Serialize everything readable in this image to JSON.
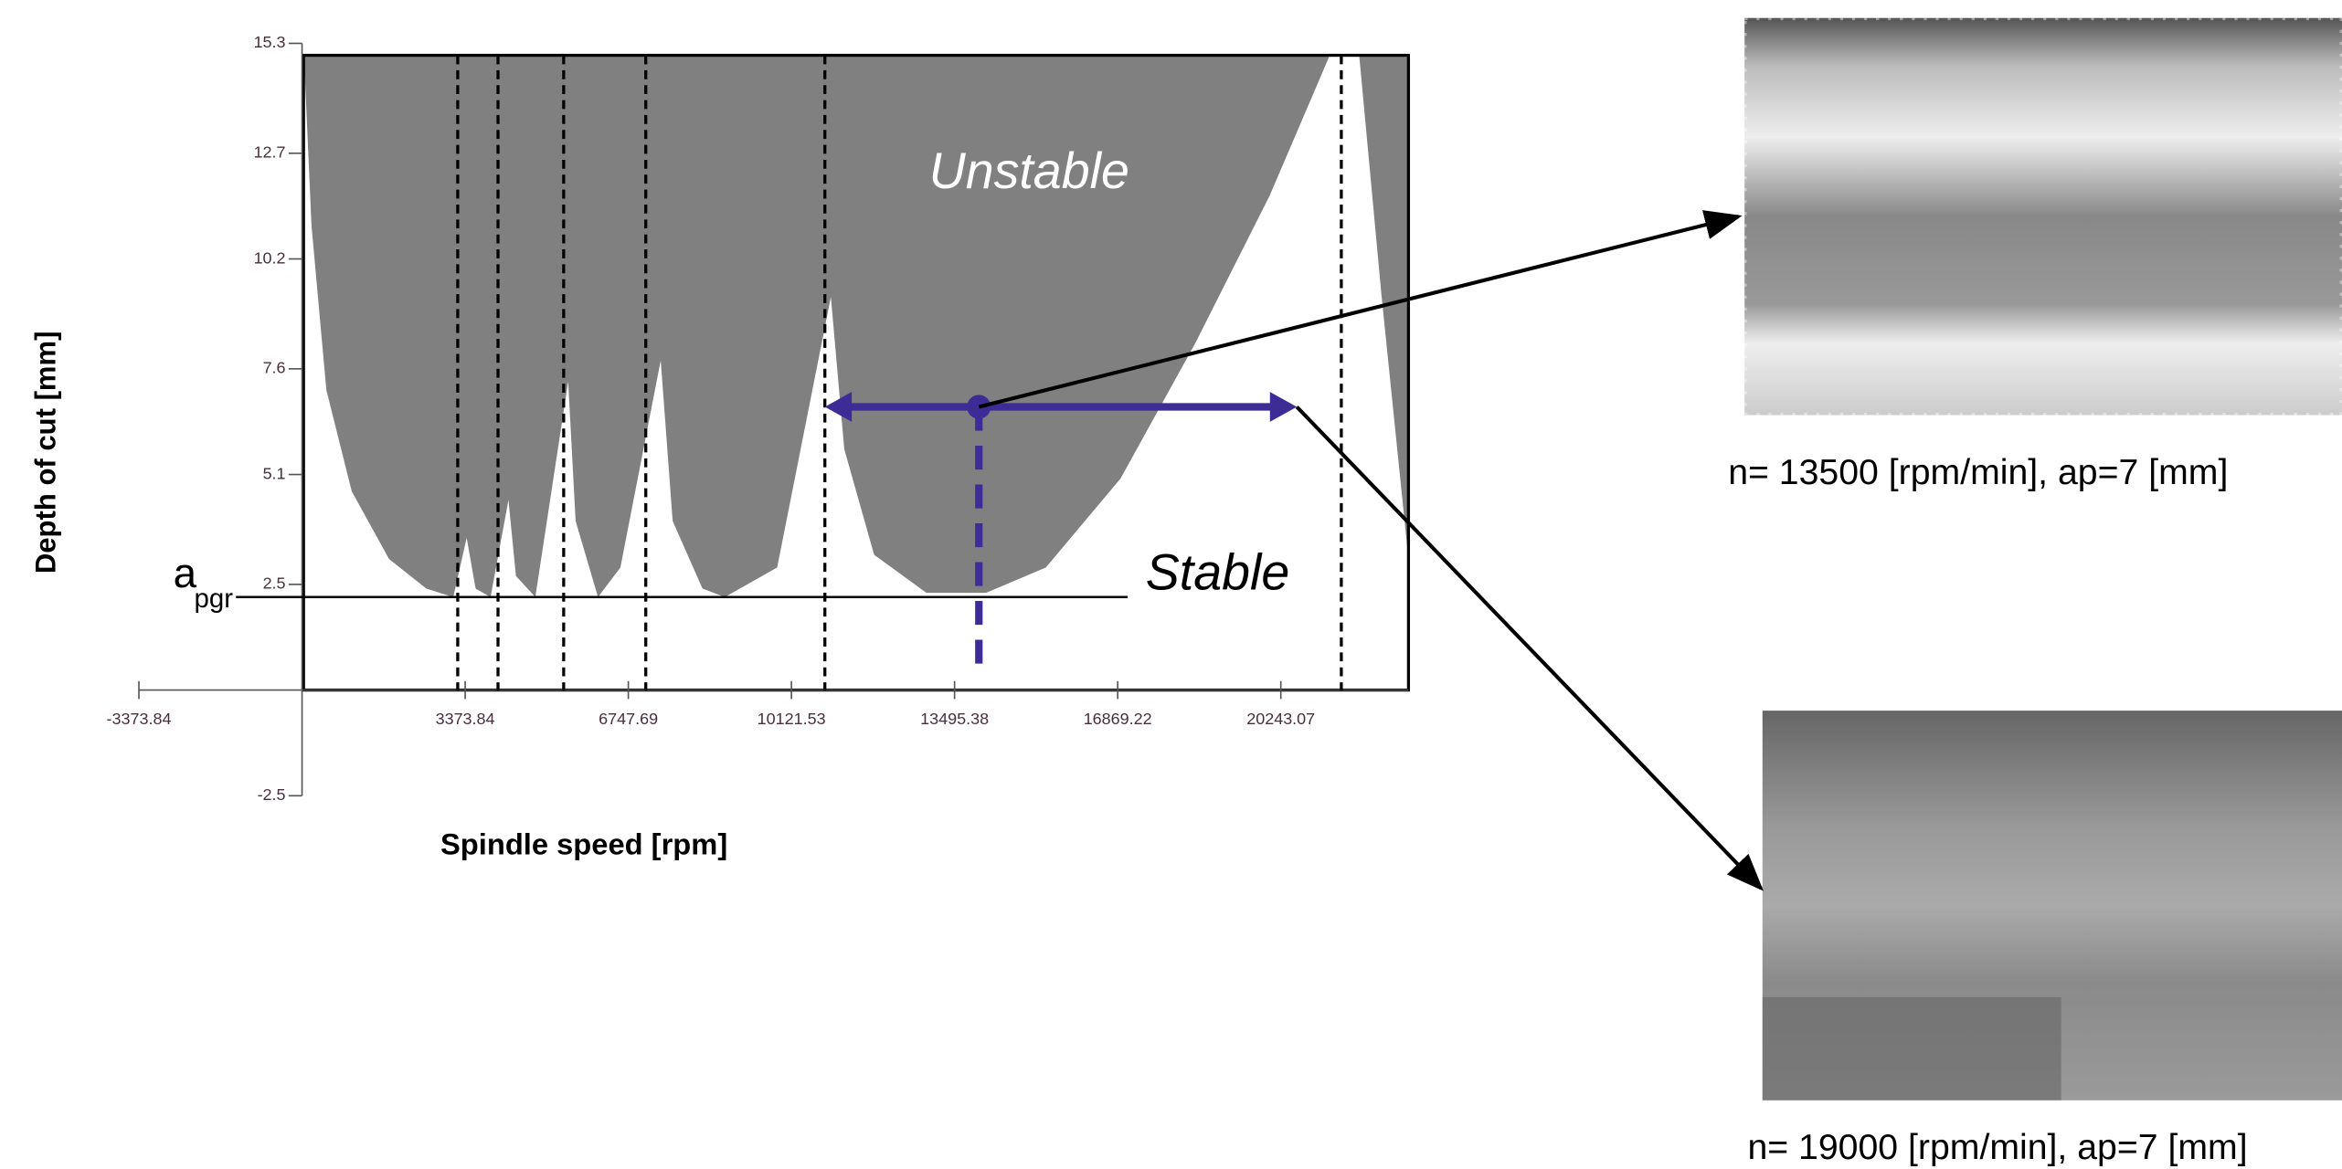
{
  "chart_data": {
    "type": "area",
    "x_label": "Spindle speed [rpm]",
    "y_label": "Depth of cut [mm]",
    "xlim": [
      -3373.84,
      22883
    ],
    "ylim": [
      -2.5,
      15.3
    ],
    "xticks": [
      -3373.84,
      3373.84,
      6747.69,
      10121.53,
      13495.38,
      16869.22,
      20243.07
    ],
    "yticks": [
      -2.5,
      2.5,
      5.1,
      7.6,
      10.2,
      12.7,
      15.3
    ],
    "boundary": {
      "color": "#808080",
      "x": [
        40,
        195,
        503,
        1028,
        1800,
        2571,
        3127,
        3405,
        3590,
        3899,
        4269,
        4424,
        4825,
        5504,
        5658,
        6121,
        6584,
        7418,
        7665,
        8282,
        8745,
        9826,
        10937,
        11214,
        11832,
        12913,
        14148,
        15383,
        16926,
        18470,
        20013,
        21248,
        21865,
        22328,
        22883
      ],
      "y": [
        15.0,
        11.0,
        7.1,
        4.7,
        3.1,
        2.4,
        2.2,
        3.6,
        2.4,
        2.2,
        4.5,
        2.7,
        2.2,
        7.3,
        4.0,
        2.2,
        2.9,
        7.8,
        4.0,
        2.4,
        2.2,
        2.9,
        9.3,
        5.7,
        3.2,
        2.3,
        2.3,
        2.9,
        5.0,
        8.2,
        11.7,
        15.0,
        15.0,
        9.3,
        3.1
      ]
    },
    "dashed_lines": [
      3220,
      4053,
      5411,
      7109,
      10813,
      21494
    ],
    "unstable_label": "Unstable",
    "stable_label": "Stable",
    "limit": {
      "symbol": "a",
      "subscript": "pgr",
      "value": 2.2
    },
    "operating_point": {
      "x": 13998,
      "y": 6.7,
      "range": [
        10813,
        20574
      ],
      "color": "#3d2b96"
    }
  },
  "images": [
    {
      "caption": "n= 13500 [rpm/min], ap=7 [mm]"
    },
    {
      "caption": "n= 19000 [rpm/min], ap=7 [mm]"
    }
  ]
}
